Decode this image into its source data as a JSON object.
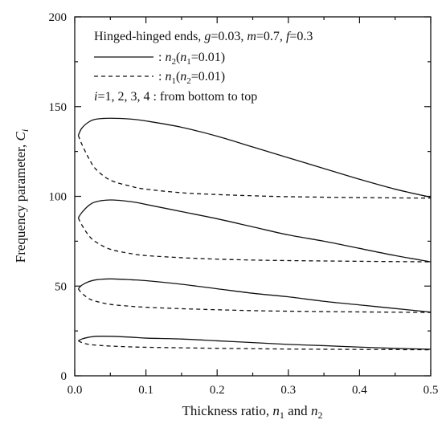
{
  "chart_data": {
    "type": "line",
    "xlabel": "Thickness ratio, n₁ and n₂",
    "ylabel": "Frequency parameter, Cᵢ",
    "xlim": [
      0,
      0.5
    ],
    "ylim": [
      0,
      200
    ],
    "xticks": [
      "0.0",
      "0.1",
      "0.2",
      "0.3",
      "0.4",
      "0.5"
    ],
    "yticks": [
      "0",
      "50",
      "100",
      "150",
      "200"
    ],
    "grid": false,
    "annotation": {
      "line1": "Hinged-hinged ends, g=0.03, m=0.7, f=0.3",
      "legend_solid": ": n₂(n₁=0.01)",
      "legend_dashed": ": n₁(n₂=0.01)",
      "line4": "i=1, 2, 3, 4 : from bottom to top"
    },
    "series": [
      {
        "name": "n₂(n₁=0.01)",
        "mode": "i=1",
        "style": "solid",
        "x": [
          0.005,
          0.01,
          0.02,
          0.03,
          0.05,
          0.08,
          0.1,
          0.15,
          0.2,
          0.25,
          0.3,
          0.35,
          0.4,
          0.45,
          0.5
        ],
        "y": [
          19.5,
          20.5,
          21.5,
          22,
          22,
          21.5,
          21,
          20.5,
          19.5,
          18.5,
          17.5,
          16.8,
          16,
          15.3,
          14.8
        ]
      },
      {
        "name": "n₁(n₂=0.01)",
        "mode": "i=1",
        "style": "dashed",
        "x": [
          0.005,
          0.01,
          0.02,
          0.04,
          0.06,
          0.08,
          0.1,
          0.15,
          0.2,
          0.25,
          0.3,
          0.4,
          0.5
        ],
        "y": [
          19.5,
          18.5,
          17.5,
          16.8,
          16.4,
          16.1,
          15.9,
          15.6,
          15.3,
          15.1,
          14.9,
          14.7,
          14.5
        ]
      },
      {
        "name": "n₂(n₁=0.01)",
        "mode": "i=2",
        "style": "solid",
        "x": [
          0.005,
          0.01,
          0.02,
          0.03,
          0.05,
          0.08,
          0.1,
          0.15,
          0.2,
          0.25,
          0.3,
          0.35,
          0.4,
          0.45,
          0.5
        ],
        "y": [
          48.5,
          50.5,
          52.5,
          53.5,
          54,
          53.5,
          53,
          51,
          48.5,
          46,
          44,
          41.5,
          39.5,
          37.5,
          35.5
        ]
      },
      {
        "name": "n₁(n₂=0.01)",
        "mode": "i=2",
        "style": "dashed",
        "x": [
          0.005,
          0.01,
          0.02,
          0.03,
          0.05,
          0.08,
          0.1,
          0.15,
          0.2,
          0.25,
          0.3,
          0.4,
          0.5
        ],
        "y": [
          48.5,
          46,
          43,
          41.5,
          39.8,
          38.7,
          38.2,
          37.4,
          36.8,
          36.3,
          36,
          35.6,
          35.3
        ]
      },
      {
        "name": "n₂(n₁=0.01)",
        "mode": "i=3",
        "style": "solid",
        "x": [
          0.005,
          0.01,
          0.02,
          0.03,
          0.05,
          0.08,
          0.1,
          0.15,
          0.2,
          0.25,
          0.3,
          0.35,
          0.4,
          0.45,
          0.5
        ],
        "y": [
          88,
          91,
          95,
          97,
          98,
          97,
          95.5,
          91.5,
          87.5,
          83,
          78.5,
          75,
          71,
          67,
          63.5
        ]
      },
      {
        "name": "n₁(n₂=0.01)",
        "mode": "i=3",
        "style": "dashed",
        "x": [
          0.005,
          0.01,
          0.02,
          0.03,
          0.05,
          0.08,
          0.1,
          0.15,
          0.2,
          0.25,
          0.3,
          0.4,
          0.5
        ],
        "y": [
          88,
          84,
          78,
          74.5,
          70.5,
          68,
          67,
          65.8,
          65,
          64.5,
          64.2,
          63.8,
          63.5
        ]
      },
      {
        "name": "n₂(n₁=0.01)",
        "mode": "i=4",
        "style": "solid",
        "x": [
          0.005,
          0.01,
          0.02,
          0.03,
          0.05,
          0.08,
          0.1,
          0.15,
          0.2,
          0.25,
          0.3,
          0.35,
          0.4,
          0.45,
          0.5
        ],
        "y": [
          134,
          138,
          141.5,
          143,
          143.5,
          143,
          142,
          138.5,
          133.5,
          127.5,
          121.5,
          115.5,
          109.5,
          104,
          99.5
        ]
      },
      {
        "name": "n₁(n₂=0.01)",
        "mode": "i=4",
        "style": "dashed",
        "x": [
          0.005,
          0.01,
          0.02,
          0.03,
          0.05,
          0.08,
          0.1,
          0.15,
          0.2,
          0.25,
          0.3,
          0.4,
          0.5
        ],
        "y": [
          134,
          129,
          121,
          115,
          109,
          105.5,
          104,
          102,
          101,
          100.3,
          99.8,
          99.3,
          99
        ]
      }
    ]
  }
}
